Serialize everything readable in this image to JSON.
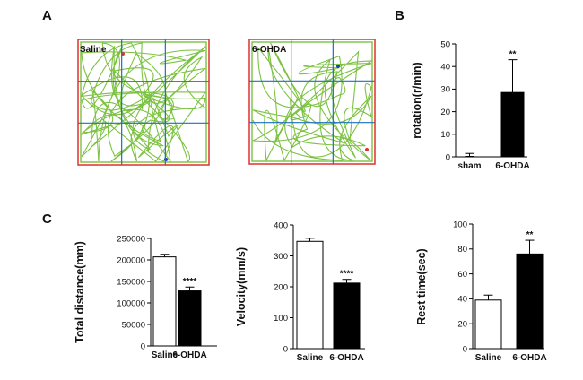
{
  "panel_letters": {
    "a": "A",
    "b": "B",
    "c": "C"
  },
  "open_field": [
    {
      "label": "Saline"
    },
    {
      "label": "6-OHDA"
    }
  ],
  "colors": {
    "track": "#7cc242",
    "grid": "#1a6fc4",
    "border": "#e03030",
    "bar_fill": [
      "#ffffff",
      "#000000"
    ],
    "axis": "#000000"
  },
  "chart_data": [
    {
      "type": "bar",
      "panel": "B",
      "categories": [
        "sham",
        "6-OHDA"
      ],
      "values": [
        0,
        28.5
      ],
      "errors": [
        1.5,
        14.5
      ],
      "bar_colors": [
        "#ffffff",
        "#000000"
      ],
      "significance": [
        "",
        "**"
      ],
      "ylabel": "rotation(r/min)",
      "ylim": [
        0,
        50
      ],
      "yticks": [
        0,
        10,
        20,
        30,
        40,
        50
      ],
      "ytick_labels": [
        "0",
        "10",
        "20",
        "30",
        "40",
        "50"
      ]
    },
    {
      "type": "bar",
      "panel": "C",
      "categories": [
        "Saline",
        "6-OHDA"
      ],
      "values": [
        207000,
        128000
      ],
      "errors": [
        6000,
        9000
      ],
      "bar_colors": [
        "#ffffff",
        "#000000"
      ],
      "significance": [
        "",
        "****"
      ],
      "ylabel": "Total distance(mm)",
      "ylim": [
        0,
        250000
      ],
      "yticks": [
        0,
        50000,
        100000,
        150000,
        200000,
        250000
      ],
      "ytick_labels": [
        "0",
        "50000",
        "100000",
        "150000",
        "200000",
        "250000"
      ]
    },
    {
      "type": "bar",
      "panel": "C",
      "categories": [
        "Saline",
        "6-OHDA"
      ],
      "values": [
        347,
        212
      ],
      "errors": [
        10,
        12
      ],
      "bar_colors": [
        "#ffffff",
        "#000000"
      ],
      "significance": [
        "",
        "****"
      ],
      "ylabel": "Velocity(mm/s)",
      "ylim": [
        0,
        400
      ],
      "yticks": [
        0,
        100,
        200,
        300,
        400
      ],
      "ytick_labels": [
        "0",
        "100",
        "200",
        "300",
        "400"
      ]
    },
    {
      "type": "bar",
      "panel": "C",
      "categories": [
        "Saline",
        "6-OHDA"
      ],
      "values": [
        39,
        76
      ],
      "errors": [
        4,
        11
      ],
      "bar_colors": [
        "#ffffff",
        "#000000"
      ],
      "significance": [
        "",
        "**"
      ],
      "ylabel": "Rest time(sec)",
      "ylim": [
        0,
        100
      ],
      "yticks": [
        0,
        20,
        40,
        60,
        80,
        100
      ],
      "ytick_labels": [
        "0",
        "20",
        "40",
        "60",
        "80",
        "100"
      ]
    }
  ]
}
